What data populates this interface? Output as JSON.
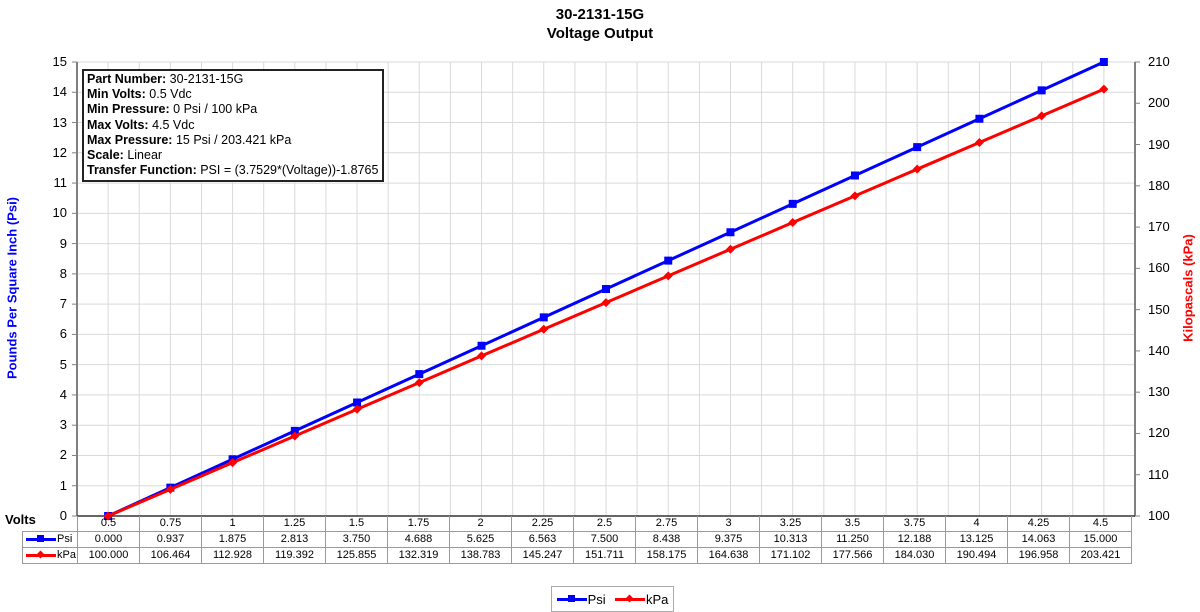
{
  "title": {
    "line1": "30-2131-15G",
    "line2": "Voltage Output"
  },
  "axes": {
    "left_label": "Pounds Per Square Inch (Psi)",
    "right_label": "Kilopascals (kPa)",
    "x_label": "Volts",
    "left_ticks": [
      "0",
      "1",
      "2",
      "3",
      "4",
      "5",
      "6",
      "7",
      "8",
      "9",
      "10",
      "11",
      "12",
      "13",
      "14",
      "15"
    ],
    "right_ticks": [
      "100",
      "110",
      "120",
      "130",
      "140",
      "150",
      "160",
      "170",
      "180",
      "190",
      "200",
      "210"
    ]
  },
  "infobox": {
    "part_number_label": "Part Number:",
    "part_number": "30-2131-15G",
    "min_volts_label": "Min Volts:",
    "min_volts": "0.5 Vdc",
    "min_pressure_label": "Min Pressure:",
    "min_pressure": "0 Psi / 100 kPa",
    "max_volts_label": "Max Volts:",
    "max_volts": "4.5 Vdc",
    "max_pressure_label": "Max Pressure:",
    "max_pressure": "15 Psi / 203.421 kPa",
    "scale_label": "Scale:",
    "scale": "Linear",
    "transfer_label": "Transfer Function:",
    "transfer": "PSI = (3.7529*(Voltage))-1.8765"
  },
  "legend": {
    "psi": "Psi",
    "kpa": "kPa"
  },
  "colors": {
    "psi": "#0000ff",
    "kpa": "#ff0000",
    "grid": "#d9d9d9",
    "axis": "#808080"
  },
  "chart_data": {
    "type": "line",
    "title": "30-2131-15G Voltage Output",
    "xlabel": "Volts",
    "ylabel": "Pounds Per Square Inch (Psi)",
    "y2label": "Kilopascals (kPa)",
    "categories": [
      "0.5",
      "0.75",
      "1",
      "1.25",
      "1.5",
      "1.75",
      "2",
      "2.25",
      "2.5",
      "2.75",
      "3",
      "3.25",
      "3.5",
      "3.75",
      "4",
      "4.25",
      "4.5"
    ],
    "ylim": [
      0,
      15
    ],
    "y2lim": [
      100,
      210
    ],
    "grid": true,
    "legend_position": "bottom",
    "data_table": true,
    "series": [
      {
        "name": "Psi",
        "axis": "left",
        "color": "#0000ff",
        "marker": "square",
        "values": [
          "0.000",
          "0.937",
          "1.875",
          "2.813",
          "3.750",
          "4.688",
          "5.625",
          "6.563",
          "7.500",
          "8.438",
          "9.375",
          "10.313",
          "11.250",
          "12.188",
          "13.125",
          "14.063",
          "15.000"
        ]
      },
      {
        "name": "kPa",
        "axis": "right",
        "color": "#ff0000",
        "marker": "diamond",
        "values": [
          "100.000",
          "106.464",
          "112.928",
          "119.392",
          "125.855",
          "132.319",
          "138.783",
          "145.247",
          "151.711",
          "158.175",
          "164.638",
          "171.102",
          "177.566",
          "184.030",
          "190.494",
          "196.958",
          "203.421"
        ]
      }
    ]
  }
}
